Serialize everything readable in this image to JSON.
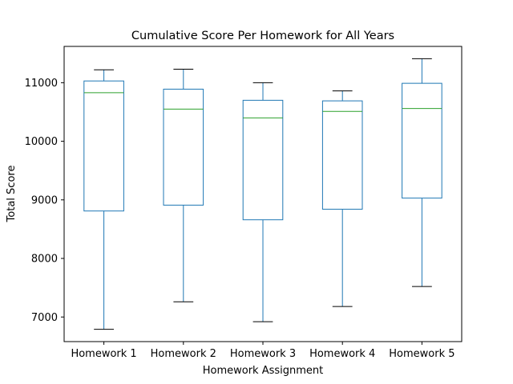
{
  "chart_data": {
    "type": "box",
    "title": "Cumulative Score Per Homework for All Years",
    "xlabel": "Homework Assignment",
    "ylabel": "Total Score",
    "categories": [
      "Homework 1",
      "Homework 2",
      "Homework 3",
      "Homework 4",
      "Homework 5"
    ],
    "boxes": [
      {
        "whisker_low": 6790,
        "q1": 8810,
        "median": 10830,
        "q3": 11030,
        "whisker_high": 11220
      },
      {
        "whisker_low": 7260,
        "q1": 8910,
        "median": 10550,
        "q3": 10890,
        "whisker_high": 11230
      },
      {
        "whisker_low": 6920,
        "q1": 8660,
        "median": 10400,
        "q3": 10700,
        "whisker_high": 11000
      },
      {
        "whisker_low": 7180,
        "q1": 8840,
        "median": 10510,
        "q3": 10690,
        "whisker_high": 10860
      },
      {
        "whisker_low": 7520,
        "q1": 9030,
        "median": 10560,
        "q3": 10990,
        "whisker_high": 11410
      }
    ],
    "yticks": [
      7000,
      8000,
      9000,
      10000,
      11000
    ],
    "ylim": [
      6580,
      11620
    ],
    "grid": false,
    "colors": {
      "box": "#1f77b4",
      "median": "#2ca02c",
      "whisker_cap": "#000000"
    }
  }
}
